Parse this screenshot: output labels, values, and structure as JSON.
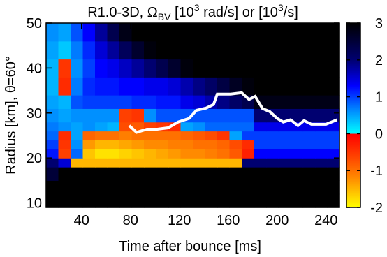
{
  "chart_data": {
    "type": "heatmap",
    "title": [
      "R1.0-3D, Ω",
      "BV",
      " [10",
      "3",
      " rad/s] or [10",
      "3",
      "/s]"
    ],
    "xlabel": "Time after bounce [ms]",
    "ylabel": "Radius [km], θ=60°",
    "xlim": [
      11,
      251
    ],
    "ylim": [
      9,
      50
    ],
    "xticks": [
      40,
      80,
      120,
      160,
      200,
      240
    ],
    "yticks": [
      10,
      20,
      30,
      40,
      50
    ],
    "x_bins": [
      11,
      21,
      31,
      41,
      51,
      61,
      71,
      81,
      91,
      101,
      111,
      121,
      131,
      141,
      151,
      161,
      171,
      181,
      191,
      201,
      211,
      221,
      231,
      241,
      251
    ],
    "y_bins": [
      9,
      12,
      15,
      18,
      20,
      22,
      24,
      26,
      28,
      31,
      34,
      38,
      42,
      46,
      50
    ],
    "z": [
      [
        3,
        3,
        3,
        3,
        3,
        3,
        3,
        3,
        3,
        3,
        3,
        3,
        3,
        3,
        3,
        3,
        3,
        3,
        3,
        3,
        3,
        3,
        3,
        3
      ],
      [
        3,
        3,
        3,
        3,
        3,
        3,
        3,
        3,
        3,
        3,
        3,
        3,
        3,
        3,
        3,
        3,
        3,
        3,
        3,
        3,
        3,
        3,
        3,
        3
      ],
      [
        2.5,
        3,
        3,
        3,
        3,
        3,
        3,
        3,
        3,
        3,
        3,
        3,
        3,
        3,
        3,
        3,
        3,
        3,
        3,
        3,
        3,
        3,
        3,
        3
      ],
      [
        2,
        1.5,
        -1.5,
        -1.5,
        -1.5,
        -1.5,
        -1.5,
        -1.5,
        -1.5,
        -1.5,
        -1.5,
        -1.5,
        -1.5,
        -1.5,
        -1.5,
        -1.5,
        2,
        2,
        2,
        2,
        2,
        2,
        2,
        2
      ],
      [
        1.2,
        -0.6,
        0.8,
        -1.6,
        -1.8,
        -1.8,
        -1.7,
        -1.6,
        -1.5,
        -1.4,
        -1.3,
        -1.2,
        -1.2,
        -1.1,
        -1,
        -0.8,
        -0.3,
        1.3,
        1.3,
        1.3,
        1.3,
        1.3,
        1.3,
        1.3
      ],
      [
        1,
        -0.5,
        0.6,
        -1.3,
        -1.5,
        -1.5,
        -1.4,
        -1.3,
        -1.2,
        -1.2,
        -1.1,
        -1.1,
        -1,
        -1,
        -0.9,
        -0.7,
        -0.4,
        1,
        1,
        1,
        1,
        1,
        1,
        1
      ],
      [
        0.8,
        -0.4,
        0.5,
        -0.9,
        -1,
        -1,
        -1.1,
        -1,
        -1,
        -1,
        -1,
        -0.9,
        -0.8,
        -0.7,
        -0.5,
        0.5,
        1,
        1,
        1,
        1,
        1,
        1,
        1,
        1
      ],
      [
        0.7,
        0.6,
        0.5,
        0.6,
        0.5,
        0.4,
        -0.7,
        -0.8,
        -0.6,
        -0.5,
        -0.4,
        0.5,
        0.6,
        0.8,
        0.8,
        0.8,
        0.8,
        1.4,
        1.4,
        1.4,
        1.4,
        1.4,
        1.4,
        1.4
      ],
      [
        0.6,
        0.5,
        0.6,
        0.6,
        0.6,
        0.6,
        -0.6,
        -0.5,
        0.6,
        0.9,
        0.9,
        0.9,
        0.9,
        0.9,
        0.9,
        0.9,
        0.9,
        2,
        2,
        2,
        2,
        2,
        2,
        2
      ],
      [
        0.5,
        0.4,
        0.9,
        1,
        1,
        1,
        1,
        1.1,
        1.1,
        1.2,
        1.2,
        1.4,
        1.5,
        1.7,
        1.9,
        2.1,
        2.3,
        2.8,
        2.8,
        2.8,
        2.8,
        2.8,
        2.8,
        2.8
      ],
      [
        0.4,
        -0.4,
        0.7,
        1.1,
        1.2,
        1.2,
        1.3,
        1.3,
        1.4,
        1.4,
        1.5,
        1.7,
        1.9,
        2.1,
        2.4,
        2.7,
        2.9,
        3,
        3,
        3,
        3,
        3,
        3,
        3
      ],
      [
        0.4,
        -0.5,
        0.6,
        1,
        1.3,
        1.4,
        1.6,
        1.8,
        2,
        2.3,
        2.6,
        2.9,
        3,
        3,
        3,
        3,
        3,
        3,
        3,
        3,
        3,
        3,
        3,
        3
      ],
      [
        0.5,
        0.3,
        0.7,
        1.1,
        1.5,
        1.8,
        2.2,
        2.6,
        2.9,
        3,
        3,
        3,
        3,
        3,
        3,
        3,
        3,
        3,
        3,
        3,
        3,
        3,
        3,
        3
      ],
      [
        0.6,
        0.5,
        0.9,
        1.3,
        1.8,
        2.3,
        2.8,
        3,
        3,
        3,
        3,
        3,
        3,
        3,
        3,
        3,
        3,
        3,
        3,
        3,
        3,
        3,
        3,
        3
      ]
    ],
    "clim": [
      -2,
      3
    ],
    "cticks": [
      -2,
      -1,
      0,
      1,
      2,
      3
    ],
    "colormap": [
      {
        "value": 3,
        "color": "#000000"
      },
      {
        "value": 2,
        "color": "#000070"
      },
      {
        "value": 1.3,
        "color": "#0000ff"
      },
      {
        "value": 0.6,
        "color": "#0090ff"
      },
      {
        "value": 0,
        "color": "#00ffff"
      },
      {
        "value": 0,
        "color": "#ff0000"
      },
      {
        "value": -0.6,
        "color": "#ff4000"
      },
      {
        "value": -1.2,
        "color": "#ff8a00"
      },
      {
        "value": -2,
        "color": "#ffff00"
      }
    ],
    "line": {
      "color": "#ffffff",
      "x": [
        79,
        85,
        93.5,
        102,
        110.7,
        119,
        128,
        134,
        142,
        148,
        151,
        162,
        171,
        177,
        182,
        188,
        194,
        200,
        205,
        211,
        217,
        222,
        228,
        240,
        249
      ],
      "y": [
        27.2,
        25.7,
        26.4,
        26.4,
        26.7,
        28,
        28.8,
        30.6,
        31.1,
        31.9,
        34.2,
        34.2,
        34.5,
        33,
        33.7,
        31,
        30.3,
        28.8,
        28,
        28.5,
        27.2,
        28.3,
        27.5,
        27.5,
        28.5
      ]
    }
  }
}
